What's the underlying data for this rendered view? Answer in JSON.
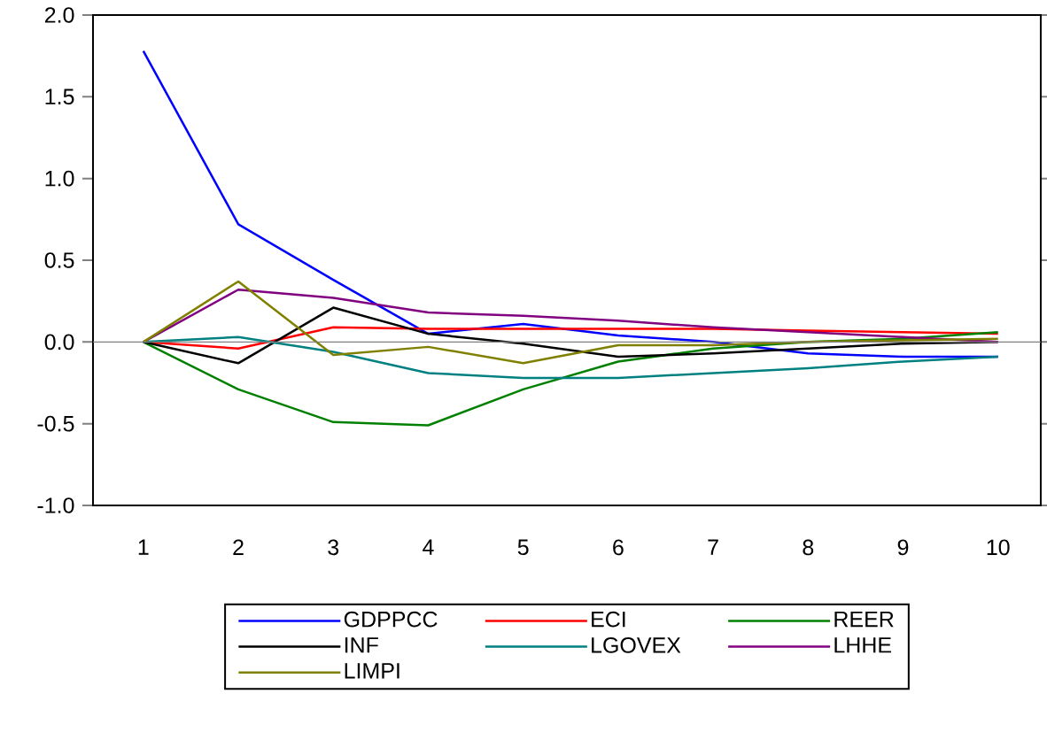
{
  "chart_data": {
    "type": "line",
    "categories": [
      "1",
      "2",
      "3",
      "4",
      "5",
      "6",
      "7",
      "8",
      "9",
      "10"
    ],
    "ylim": [
      -1.0,
      2.0
    ],
    "yticks": [
      {
        "value": -1.0,
        "label": "-1.0"
      },
      {
        "value": -0.5,
        "label": "-0.5"
      },
      {
        "value": 0.0,
        "label": "0.0"
      },
      {
        "value": 0.5,
        "label": "0.5"
      },
      {
        "value": 1.0,
        "label": "1.0"
      },
      {
        "value": 1.5,
        "label": "1.5"
      },
      {
        "value": 2.0,
        "label": "2.0"
      }
    ],
    "series": [
      {
        "name": "GDPPCC",
        "color": "#0000ff",
        "values": [
          1.78,
          0.72,
          0.38,
          0.05,
          0.11,
          0.04,
          0.0,
          -0.07,
          -0.09,
          -0.09
        ]
      },
      {
        "name": "ECI",
        "color": "#ff0000",
        "values": [
          0.0,
          -0.04,
          0.09,
          0.08,
          0.08,
          0.08,
          0.08,
          0.07,
          0.06,
          0.05
        ]
      },
      {
        "name": "REER",
        "color": "#008000",
        "values": [
          0.0,
          -0.29,
          -0.49,
          -0.51,
          -0.29,
          -0.12,
          -0.04,
          0.0,
          0.02,
          0.06
        ]
      },
      {
        "name": "INF",
        "color": "#000000",
        "values": [
          0.0,
          -0.13,
          0.21,
          0.05,
          -0.01,
          -0.09,
          -0.07,
          -0.04,
          -0.01,
          0.0
        ]
      },
      {
        "name": "LGOVEX",
        "color": "#008080",
        "values": [
          0.0,
          0.03,
          -0.06,
          -0.19,
          -0.22,
          -0.22,
          -0.19,
          -0.16,
          -0.12,
          -0.09
        ]
      },
      {
        "name": "LHHE",
        "color": "#800080",
        "values": [
          0.0,
          0.32,
          0.27,
          0.18,
          0.16,
          0.13,
          0.09,
          0.06,
          0.03,
          0.0
        ]
      },
      {
        "name": "LIMPI",
        "color": "#808000",
        "values": [
          0.0,
          0.37,
          -0.08,
          -0.03,
          -0.13,
          -0.02,
          -0.02,
          0.0,
          0.01,
          0.02
        ]
      }
    ],
    "ref_lines": [
      {
        "axis": "y",
        "value": 0.0,
        "color": "#808080"
      }
    ],
    "grid": false,
    "legend": "bottom",
    "marker": "none",
    "line_style": "solid"
  }
}
